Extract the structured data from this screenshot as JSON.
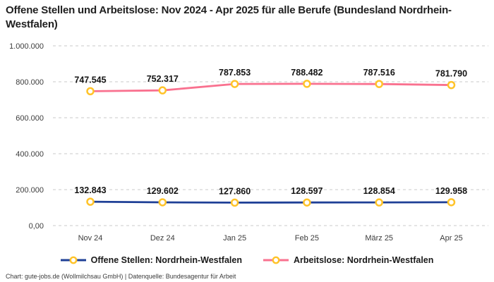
{
  "title": "Offene Stellen und Arbeitslose: Nov 2024 - Apr 2025 für alle Berufe (Bundesland Nordrhein-Westfalen)",
  "footer": "Chart: gute-jobs.de (Wollmilchsau GmbH) | Datenquelle: Bundesagentur für Arbeit",
  "colors": {
    "offene_stellen_line": "#1e3f96",
    "arbeitslose_line": "#f9718f",
    "marker_ring": "#ffc329",
    "marker_fill": "#ffffff",
    "gridline": "#c9c9c9",
    "title_text": "#1f1f1f",
    "axis_text": "#3c3c3c",
    "data_label_text": "#141414"
  },
  "chart_data": {
    "type": "line",
    "title": "Offene Stellen und Arbeitslose: Nov 2024 - Apr 2025 für alle Berufe (Bundesland Nordrhein-Westfalen)",
    "categories": [
      "Nov 24",
      "Dez 24",
      "Jan 25",
      "Feb 25",
      "März 25",
      "Apr 25"
    ],
    "series": [
      {
        "name": "Offene Stellen: Nordrhein-Westfalen",
        "color": "#1e3f96",
        "values": [
          132843,
          129602,
          127860,
          128597,
          128854,
          129958
        ],
        "labels": [
          "132.843",
          "129.602",
          "127.860",
          "128.597",
          "128.854",
          "129.958"
        ]
      },
      {
        "name": "Arbeitslose: Nordrhein-Westfalen",
        "color": "#f9718f",
        "values": [
          747545,
          752317,
          787853,
          788482,
          787516,
          781790
        ],
        "labels": [
          "747.545",
          "752.317",
          "787.853",
          "788.482",
          "787.516",
          "781.790"
        ]
      }
    ],
    "y_ticks": [
      {
        "value": 0,
        "label": "0,00"
      },
      {
        "value": 200000,
        "label": "200.000"
      },
      {
        "value": 400000,
        "label": "400.000"
      },
      {
        "value": 600000,
        "label": "600.000"
      },
      {
        "value": 800000,
        "label": "800.000"
      },
      {
        "value": 1000000,
        "label": "1.000.000"
      }
    ],
    "ylim": [
      0,
      1000000
    ],
    "grid": true,
    "grid_style": "dashed",
    "legend_position": "bottom",
    "marker": {
      "fill": "#ffffff",
      "stroke": "#ffc329"
    }
  }
}
